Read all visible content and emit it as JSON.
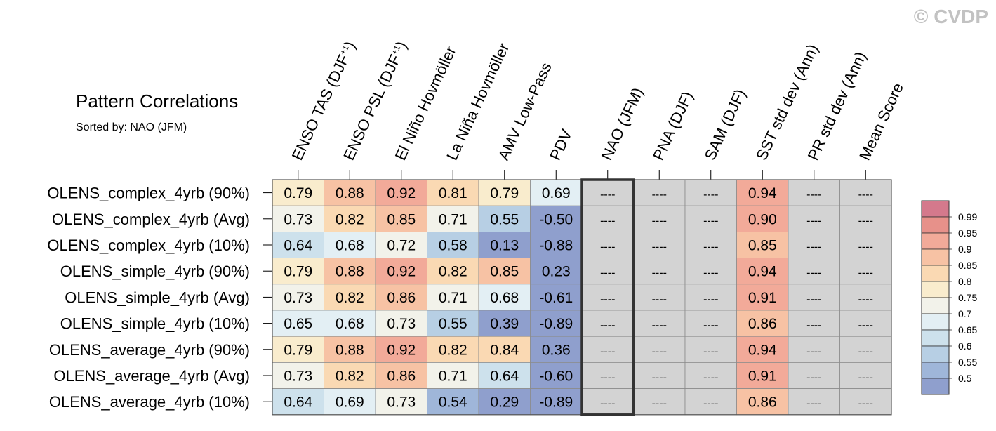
{
  "copyright": "© CVDP",
  "chart_data": {
    "type": "heatmap",
    "title": "Pattern Correlations",
    "subtitle": "Sorted by: NAO (JFM)",
    "columns": [
      {
        "text": "ENSO TAS (DJF",
        "sup": "+1",
        "tail": ")"
      },
      {
        "text": "ENSO PSL (DJF",
        "sup": "+1",
        "tail": ")"
      },
      {
        "text": "El Niño Hovmöller",
        "sup": "",
        "tail": ""
      },
      {
        "text": "La Niña Hovmöller",
        "sup": "",
        "tail": ""
      },
      {
        "text": "AMV Low-Pass",
        "sup": "",
        "tail": ""
      },
      {
        "text": "PDV",
        "sup": "",
        "tail": ""
      },
      {
        "text": "NAO (JFM)",
        "sup": "",
        "tail": ""
      },
      {
        "text": "PNA (DJF)",
        "sup": "",
        "tail": ""
      },
      {
        "text": "SAM (DJF)",
        "sup": "",
        "tail": ""
      },
      {
        "text": "SST std dev (Ann)",
        "sup": "",
        "tail": ""
      },
      {
        "text": "PR std dev (Ann)",
        "sup": "",
        "tail": ""
      },
      {
        "text": "Mean Score",
        "sup": "",
        "tail": ""
      }
    ],
    "rows": [
      "OLENS_complex_4yrb (90%)",
      "OLENS_complex_4yrb (Avg)",
      "OLENS_complex_4yrb (10%)",
      "OLENS_simple_4yrb (90%)",
      "OLENS_simple_4yrb (Avg)",
      "OLENS_simple_4yrb (10%)",
      "OLENS_average_4yrb (90%)",
      "OLENS_average_4yrb (Avg)",
      "OLENS_average_4yrb (10%)"
    ],
    "values": [
      [
        "0.79",
        "0.88",
        "0.92",
        "0.81",
        "0.79",
        "0.69",
        "----",
        "----",
        "----",
        "0.94",
        "----",
        "----"
      ],
      [
        "0.73",
        "0.82",
        "0.85",
        "0.71",
        "0.55",
        "-0.50",
        "----",
        "----",
        "----",
        "0.90",
        "----",
        "----"
      ],
      [
        "0.64",
        "0.68",
        "0.72",
        "0.58",
        "0.13",
        "-0.88",
        "----",
        "----",
        "----",
        "0.85",
        "----",
        "----"
      ],
      [
        "0.79",
        "0.88",
        "0.92",
        "0.82",
        "0.85",
        "0.23",
        "----",
        "----",
        "----",
        "0.94",
        "----",
        "----"
      ],
      [
        "0.73",
        "0.82",
        "0.86",
        "0.71",
        "0.68",
        "-0.61",
        "----",
        "----",
        "----",
        "0.91",
        "----",
        "----"
      ],
      [
        "0.65",
        "0.68",
        "0.73",
        "0.55",
        "0.39",
        "-0.89",
        "----",
        "----",
        "----",
        "0.86",
        "----",
        "----"
      ],
      [
        "0.79",
        "0.88",
        "0.92",
        "0.82",
        "0.84",
        "0.36",
        "----",
        "----",
        "----",
        "0.94",
        "----",
        "----"
      ],
      [
        "0.73",
        "0.82",
        "0.86",
        "0.71",
        "0.64",
        "-0.60",
        "----",
        "----",
        "----",
        "0.91",
        "----",
        "----"
      ],
      [
        "0.64",
        "0.69",
        "0.73",
        "0.54",
        "0.29",
        "-0.89",
        "----",
        "----",
        "----",
        "0.86",
        "----",
        "----"
      ]
    ],
    "missing_value": "----",
    "missing_color": "#d3d3d3",
    "highlight_column": "NAO (JFM)",
    "colorbar": {
      "labels": [
        "0.99",
        "0.95",
        "0.9",
        "0.85",
        "0.8",
        "0.75",
        "0.7",
        "0.65",
        "0.6",
        "0.55",
        "0.5"
      ],
      "colors": [
        "#d4798c",
        "#e7918a",
        "#f2aa99",
        "#f7c2a4",
        "#fad9b3",
        "#f9eccd",
        "#f2f2ea",
        "#e3eff4",
        "#cde1ec",
        "#b7cfe4",
        "#9fb6d9",
        "#8f9fcd"
      ]
    }
  }
}
